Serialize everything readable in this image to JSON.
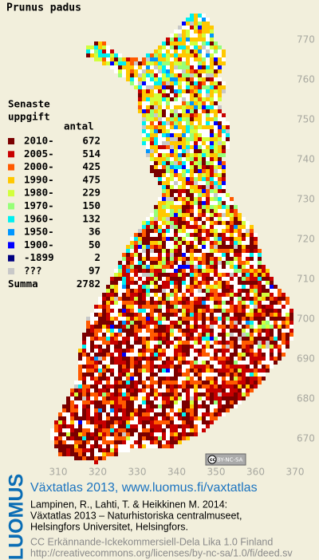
{
  "title": "Prunus padus",
  "legend": {
    "heading": [
      "Senaste",
      "uppgift"
    ],
    "count_heading": "antal",
    "entries": [
      {
        "label": "2010-",
        "count": 672,
        "color": "#7a0000"
      },
      {
        "label": "2005-",
        "count": 514,
        "color": "#c80000"
      },
      {
        "label": "2000-",
        "count": 425,
        "color": "#ff5a00"
      },
      {
        "label": "1990-",
        "count": 475,
        "color": "#ffc800"
      },
      {
        "label": "1980-",
        "count": 229,
        "color": "#d2ff3c"
      },
      {
        "label": "1970-",
        "count": 150,
        "color": "#96ff78"
      },
      {
        "label": "1960-",
        "count": 132,
        "color": "#00f0f0"
      },
      {
        "label": "1950-",
        "count": 36,
        "color": "#0096ff"
      },
      {
        "label": "1900-",
        "count": 50,
        "color": "#0000ff"
      },
      {
        "label": "-1899",
        "count": 2,
        "color": "#000080"
      },
      {
        "label": "???",
        "count": 97,
        "color": "#c8c8c8"
      }
    ],
    "total_label": "Summa",
    "total": 2782
  },
  "axes": {
    "y_ticks": [
      770,
      760,
      750,
      740,
      730,
      720,
      710,
      700,
      690,
      680,
      670
    ],
    "x_ticks": [
      310,
      320,
      330,
      340,
      350,
      360,
      370
    ]
  },
  "license_badge": "BY-NC-SA",
  "footer": {
    "logo": "LUOMUS",
    "link": "Växtatlas 2013, www.luomus.fi/vaxtatlas",
    "citation": [
      "Lampinen, R., Lahti, T. & Heikkinen M. 2014:",
      "Växtatlas 2013 – Naturhistoriska centralmuseet,",
      "Helsingfors Universitet, Helsingfors."
    ],
    "license": [
      "CC Erkännande-Ickekommersiell-Dela Lika 1.0 Finland",
      "http://creativecommons.org/licenses/by-nc-sa/1.0/fi/deed.sv"
    ]
  }
}
